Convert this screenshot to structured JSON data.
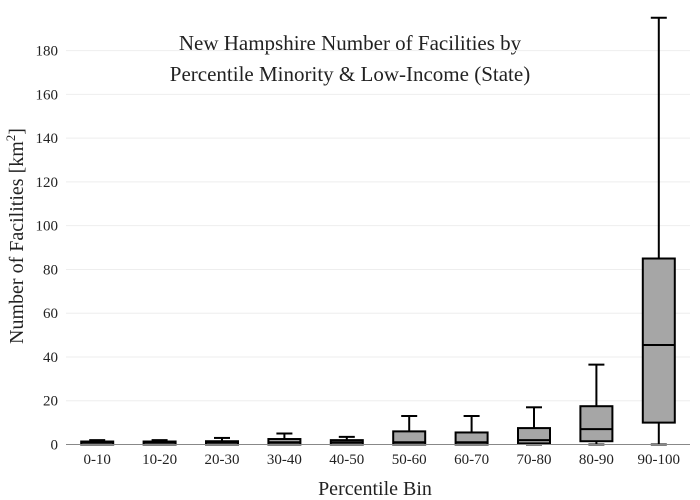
{
  "chart_data": {
    "type": "box",
    "title_lines": [
      "New Hampshire Number of Facilities by",
      "Percentile Minority & Low-Income (State)"
    ],
    "xlabel": "Percentile Bin",
    "ylabel": "Number of Facilities  [km",
    "ylabel_sup": "2",
    "ylabel_close": "]",
    "ylim": [
      0,
      194
    ],
    "y_ticks": [
      0,
      20,
      40,
      60,
      80,
      100,
      120,
      140,
      160,
      180
    ],
    "categories": [
      "0-10",
      "10-20",
      "20-30",
      "30-40",
      "40-50",
      "50-60",
      "60-70",
      "70-80",
      "80-90",
      "90-100"
    ],
    "boxes": [
      {
        "min": 0,
        "q1": 0,
        "median": 1,
        "q3": 1,
        "max": 2
      },
      {
        "min": 0,
        "q1": 0,
        "median": 1,
        "q3": 1,
        "max": 2
      },
      {
        "min": 0,
        "q1": 0,
        "median": 1,
        "q3": 1.5,
        "max": 3
      },
      {
        "min": 0,
        "q1": 0,
        "median": 1,
        "q3": 2.5,
        "max": 5
      },
      {
        "min": 0,
        "q1": 0,
        "median": 1,
        "q3": 2,
        "max": 3.5
      },
      {
        "min": 0,
        "q1": 0,
        "median": 1,
        "q3": 6,
        "max": 13
      },
      {
        "min": 0,
        "q1": 0,
        "median": 1,
        "q3": 5.5,
        "max": 13
      },
      {
        "min": 0,
        "q1": 0.5,
        "median": 2,
        "q3": 7.5,
        "max": 17
      },
      {
        "min": 0,
        "q1": 1.5,
        "median": 7,
        "q3": 17.5,
        "max": 36.5
      },
      {
        "min": 0,
        "q1": 10,
        "median": 45.5,
        "q3": 85,
        "max": 195
      }
    ],
    "colors": {
      "box_fill": "#a6a6a6",
      "stroke": "#000000",
      "grid": "#eeeeee",
      "axis": "#888888"
    }
  }
}
